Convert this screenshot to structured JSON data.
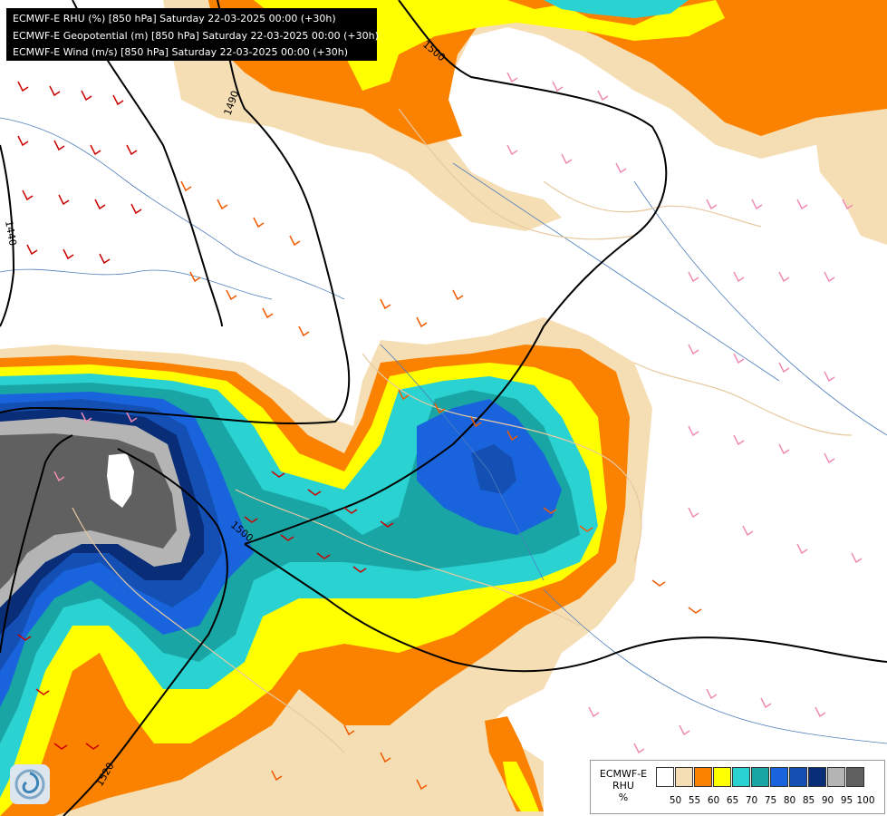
{
  "header": {
    "line1": "ECMWF-E RHU (%) [850 hPa] Saturday 22-03-2025 00:00 (+30h)",
    "line2": "ECMWF-E Geopotential (m) [850 hPa] Saturday 22-03-2025 00:00 (+30h)",
    "line3": "ECMWF-E Wind (m/s) [850 hPa] Saturday 22-03-2025 00:00 (+30h)"
  },
  "legend": {
    "title_line1": "ECMWF-E",
    "title_line2": "RHU",
    "unit": "%",
    "ticks": [
      "50",
      "55",
      "60",
      "65",
      "70",
      "75",
      "80",
      "85",
      "90",
      "95",
      "100"
    ],
    "colors": [
      "#ffffff",
      "#f5deb3",
      "#fa8200",
      "#ffff00",
      "#2ad2d2",
      "#1aa5a5",
      "#1964dc",
      "#1450b4",
      "#0a2d78",
      "#b4b4b4",
      "#606060"
    ]
  },
  "isohypse_labels": [
    "1500",
    "1490",
    "1440",
    "1520",
    "1500"
  ],
  "logo": {
    "icon": "ecmwf-swirl-icon"
  }
}
